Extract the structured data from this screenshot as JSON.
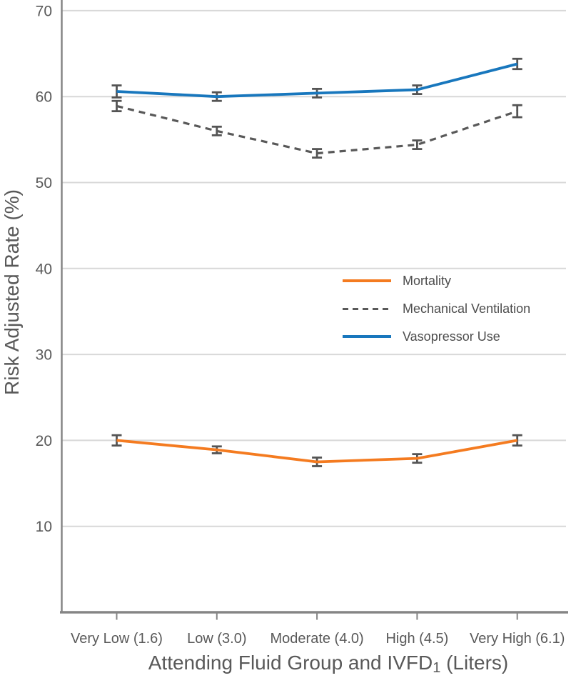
{
  "chart_data": {
    "type": "line",
    "ylabel": "Risk Adjusted Rate (%)",
    "xlabel_main": "Attending Fluid Group and IVFD",
    "xlabel_sub": "1",
    "xlabel_tail": " (Liters)",
    "categories": [
      "Very Low (1.6)",
      "Low (3.0)",
      "Moderate (4.0)",
      "High (4.5)",
      "Very High (6.1)"
    ],
    "y_ticks": [
      10,
      20,
      30,
      40,
      50,
      60,
      70
    ],
    "ylim": [
      0,
      71
    ],
    "grid": true,
    "legend": {
      "position": "inside-center-right"
    },
    "series": [
      {
        "name": "Mortality",
        "color": "#F47B20",
        "line_style": "solid",
        "values": [
          20.0,
          18.9,
          17.5,
          17.9,
          20.0
        ],
        "error_bars": [
          0.6,
          0.4,
          0.5,
          0.5,
          0.6
        ]
      },
      {
        "name": "Mechanical Ventilation",
        "color": "#595959",
        "line_style": "dashed",
        "values": [
          58.9,
          56.0,
          53.4,
          54.4,
          58.3
        ],
        "error_bars": [
          0.6,
          0.5,
          0.5,
          0.5,
          0.7
        ]
      },
      {
        "name": "Vasopressor Use",
        "color": "#1877BD",
        "line_style": "solid",
        "values": [
          60.6,
          60.0,
          60.4,
          60.8,
          63.8
        ],
        "error_bars": [
          0.7,
          0.5,
          0.5,
          0.5,
          0.6
        ]
      }
    ],
    "colors": {
      "grid": "#D8D8D8",
      "axis": "#858585",
      "tick_label": "#595959",
      "error_bar": "#545454",
      "axis_title": "#595959",
      "legend_label": "#4D4D4D"
    }
  }
}
